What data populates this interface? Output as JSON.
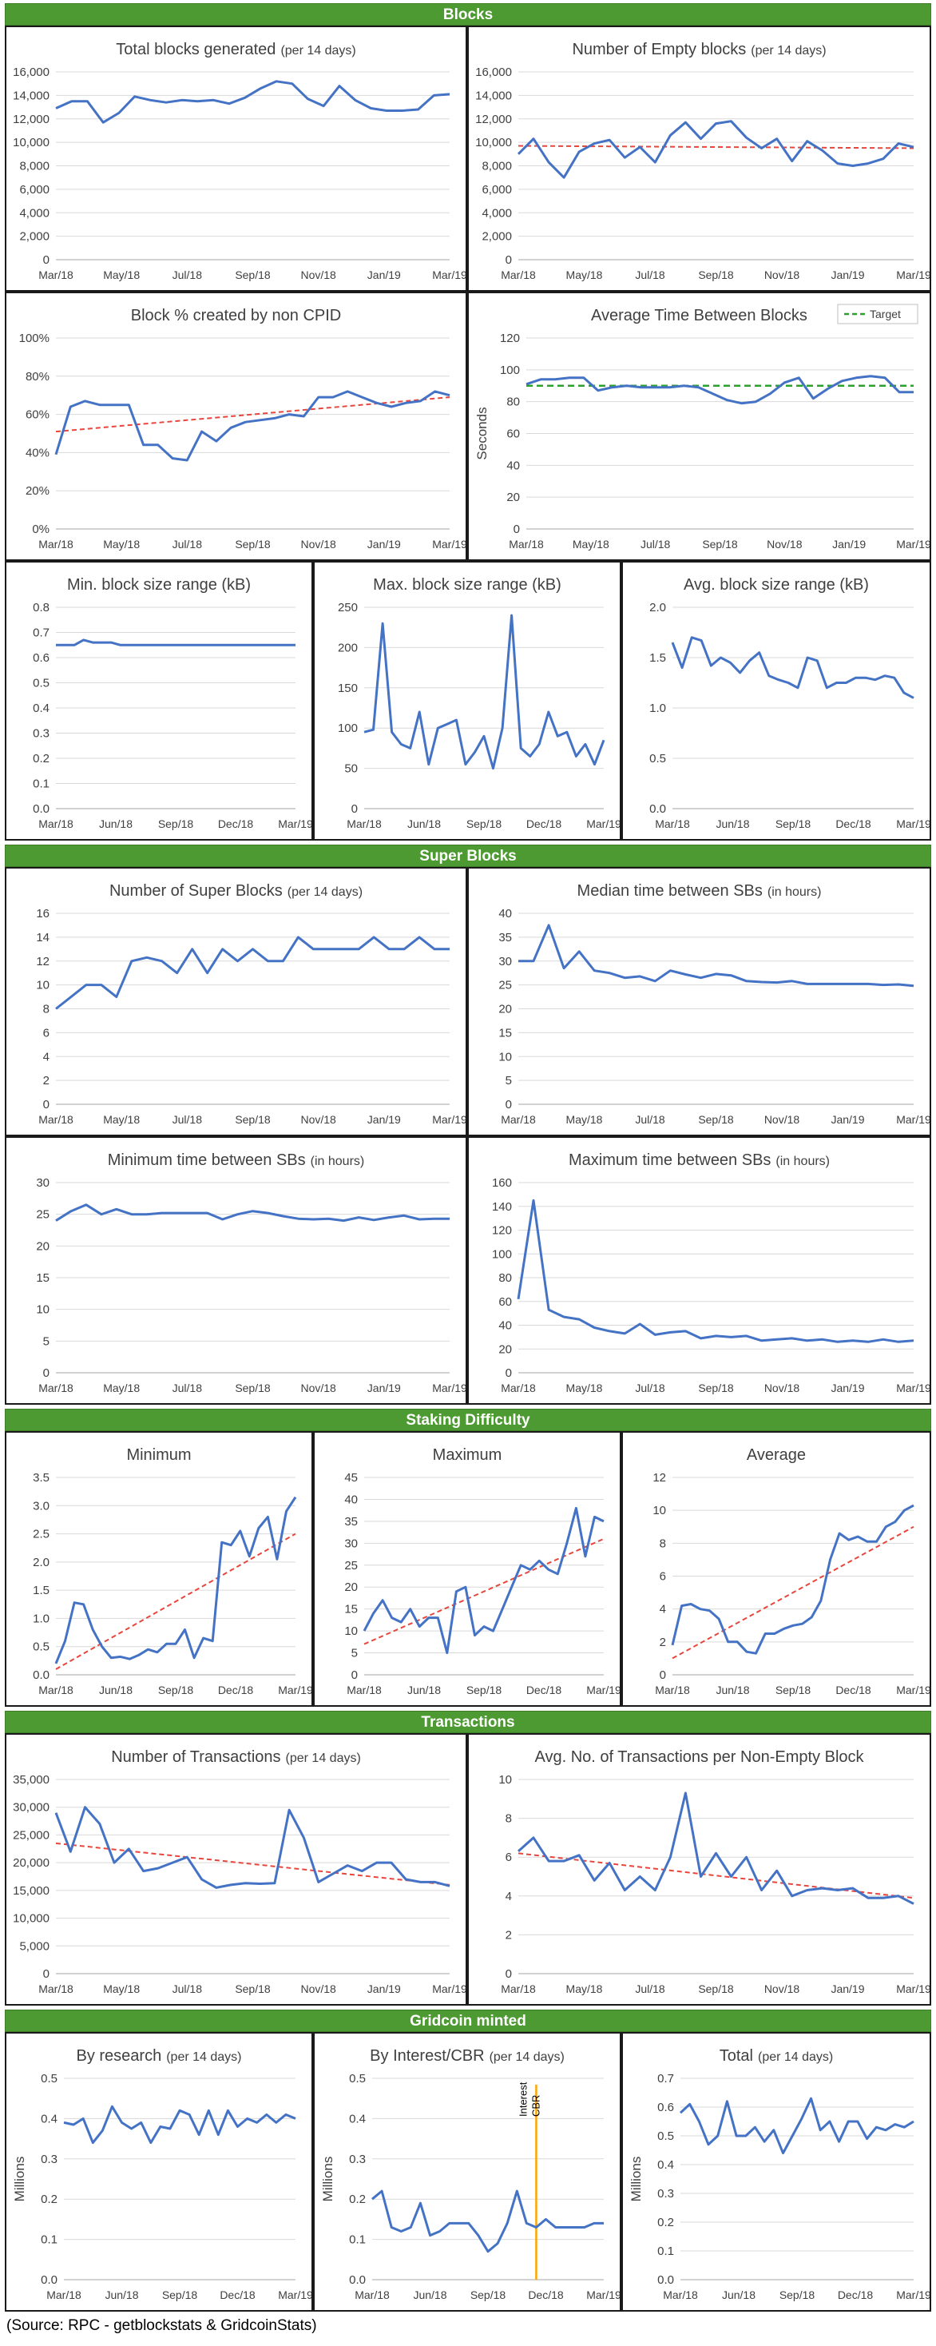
{
  "sections": [
    {
      "key": "blocks",
      "title": "Blocks"
    },
    {
      "key": "superblocks",
      "title": "Super Blocks"
    },
    {
      "key": "staking",
      "title": "Staking Difficulty"
    },
    {
      "key": "transactions",
      "title": "Transactions"
    },
    {
      "key": "minted",
      "title": "Gridcoin minted"
    }
  ],
  "source": "(Source: RPC - getblockstats & GridcoinStats)",
  "colors": {
    "series": "#4472c4",
    "trend": "#e8463c",
    "target": "#2ca02c",
    "marker": "#ffa500",
    "grid": "#d9d9d9",
    "banner": "#4e9a32"
  },
  "chart_data": [
    {
      "id": "total-blocks",
      "type": "line",
      "title": "Total blocks generated",
      "subtitle": "(per 14 days)",
      "ylim": [
        0,
        16000
      ],
      "yticks": [
        0,
        2000,
        4000,
        6000,
        8000,
        10000,
        12000,
        14000,
        16000
      ],
      "yformat": "comma",
      "xticks": [
        "Mar/18",
        "May/18",
        "Jul/18",
        "Sep/18",
        "Nov/18",
        "Jan/19",
        "Mar/19"
      ],
      "series": [
        {
          "values": [
            12900,
            13500,
            13500,
            11700,
            12500,
            13900,
            13600,
            13400,
            13600,
            13500,
            13600,
            13300,
            13800,
            14600,
            15200,
            15000,
            13700,
            13100,
            14800,
            13600,
            12900,
            12700,
            12700,
            12800,
            14000,
            14100
          ]
        }
      ]
    },
    {
      "id": "empty-blocks",
      "type": "line",
      "title": "Number of Empty blocks",
      "subtitle": "(per 14 days)",
      "ylim": [
        0,
        16000
      ],
      "yticks": [
        0,
        2000,
        4000,
        6000,
        8000,
        10000,
        12000,
        14000,
        16000
      ],
      "yformat": "comma",
      "xticks": [
        "Mar/18",
        "May/18",
        "Jul/18",
        "Sep/18",
        "Nov/18",
        "Jan/19",
        "Mar/19"
      ],
      "series": [
        {
          "values": [
            9000,
            10300,
            8300,
            7000,
            9200,
            9900,
            10200,
            8700,
            9600,
            8300,
            10600,
            11700,
            10300,
            11600,
            11800,
            10400,
            9500,
            10300,
            8400,
            10100,
            9300,
            8200,
            8000,
            8200,
            8600,
            9900,
            9600
          ]
        }
      ],
      "trend": [
        9700,
        9500
      ]
    },
    {
      "id": "non-cpid",
      "type": "line",
      "title": "Block % created by non CPID",
      "ylim": [
        0,
        100
      ],
      "yticks": [
        0,
        20,
        40,
        60,
        80,
        100
      ],
      "yformat": "percent",
      "xticks": [
        "Mar/18",
        "May/18",
        "Jul/18",
        "Sep/18",
        "Nov/18",
        "Jan/19",
        "Mar/19"
      ],
      "series": [
        {
          "values": [
            39,
            64,
            67,
            65,
            65,
            65,
            44,
            44,
            37,
            36,
            51,
            46,
            53,
            56,
            57,
            58,
            60,
            59,
            69,
            69,
            72,
            69,
            66,
            64,
            66,
            67,
            72,
            70
          ]
        }
      ],
      "trend": [
        51,
        69
      ]
    },
    {
      "id": "avg-time",
      "type": "line",
      "title": "Average Time Between Blocks",
      "ylabel": "Seconds",
      "legend": "Target",
      "target": 90,
      "ylim": [
        0,
        120
      ],
      "yticks": [
        0,
        20,
        40,
        60,
        80,
        100,
        120
      ],
      "yformat": "plain",
      "xticks": [
        "Mar/18",
        "May/18",
        "Jul/18",
        "Sep/18",
        "Nov/18",
        "Jan/19",
        "Mar/19"
      ],
      "series": [
        {
          "values": [
            91,
            94,
            94,
            95,
            95,
            87,
            89,
            90,
            89,
            89,
            89,
            90,
            89,
            85,
            81,
            79,
            80,
            85,
            92,
            95,
            82,
            88,
            93,
            95,
            96,
            95,
            86,
            86
          ]
        }
      ]
    },
    {
      "id": "min-size",
      "type": "line",
      "title": "Min. block size range (kB)",
      "ylim": [
        0,
        0.8
      ],
      "yticks": [
        0,
        0.1,
        0.2,
        0.3,
        0.4,
        0.5,
        0.6,
        0.7,
        0.8
      ],
      "yformat": "d1",
      "xticks": [
        "Mar/18",
        "Jun/18",
        "Sep/18",
        "Dec/18",
        "Mar/19"
      ],
      "series": [
        {
          "values": [
            0.65,
            0.65,
            0.65,
            0.67,
            0.66,
            0.66,
            0.66,
            0.65,
            0.65,
            0.65,
            0.65,
            0.65,
            0.65,
            0.65,
            0.65,
            0.65,
            0.65,
            0.65,
            0.65,
            0.65,
            0.65,
            0.65,
            0.65,
            0.65,
            0.65,
            0.65,
            0.65
          ]
        }
      ]
    },
    {
      "id": "max-size",
      "type": "line",
      "title": "Max. block size range (kB)",
      "ylim": [
        0,
        250
      ],
      "yticks": [
        0,
        50,
        100,
        150,
        200,
        250
      ],
      "yformat": "plain",
      "xticks": [
        "Mar/18",
        "Jun/18",
        "Sep/18",
        "Dec/18",
        "Mar/19"
      ],
      "series": [
        {
          "values": [
            95,
            98,
            230,
            95,
            80,
            75,
            120,
            55,
            100,
            105,
            110,
            55,
            70,
            90,
            50,
            100,
            240,
            75,
            65,
            80,
            120,
            90,
            95,
            65,
            80,
            55,
            85
          ]
        }
      ]
    },
    {
      "id": "avg-size",
      "type": "line",
      "title": "Avg. block size range (kB)",
      "ylim": [
        0,
        2.0
      ],
      "yticks": [
        0,
        0.5,
        1.0,
        1.5,
        2.0
      ],
      "yformat": "d1",
      "xticks": [
        "Mar/18",
        "Jun/18",
        "Sep/18",
        "Dec/18",
        "Mar/19"
      ],
      "series": [
        {
          "values": [
            1.65,
            1.4,
            1.7,
            1.67,
            1.42,
            1.5,
            1.45,
            1.35,
            1.47,
            1.55,
            1.32,
            1.28,
            1.25,
            1.2,
            1.5,
            1.47,
            1.2,
            1.25,
            1.25,
            1.3,
            1.3,
            1.28,
            1.32,
            1.3,
            1.15,
            1.1
          ]
        }
      ]
    },
    {
      "id": "num-sb",
      "type": "line",
      "title": "Number of Super Blocks",
      "subtitle": "(per 14 days)",
      "ylim": [
        0,
        16
      ],
      "yticks": [
        0,
        2,
        4,
        6,
        8,
        10,
        12,
        14,
        16
      ],
      "yformat": "plain",
      "xticks": [
        "Mar/18",
        "May/18",
        "Jul/18",
        "Sep/18",
        "Nov/18",
        "Jan/19",
        "Mar/19"
      ],
      "series": [
        {
          "values": [
            8,
            9,
            10,
            10,
            9,
            12,
            12.3,
            12,
            11,
            13,
            11,
            13,
            12,
            13,
            12,
            12,
            14,
            13,
            13,
            13,
            13,
            14,
            13,
            13,
            14,
            13,
            13
          ]
        }
      ]
    },
    {
      "id": "median-sb",
      "type": "line",
      "title": "Median time between SBs",
      "subtitle": "(in hours)",
      "ylim": [
        0,
        40
      ],
      "yticks": [
        0,
        5,
        10,
        15,
        20,
        25,
        30,
        35,
        40
      ],
      "yformat": "plain",
      "xticks": [
        "Mar/18",
        "May/18",
        "Jul/18",
        "Sep/18",
        "Nov/18",
        "Jan/19",
        "Mar/19"
      ],
      "series": [
        {
          "values": [
            30,
            30,
            37.5,
            28.5,
            32,
            28,
            27.5,
            26.5,
            26.8,
            25.8,
            28,
            27.2,
            26.5,
            27.3,
            27,
            25.8,
            25.6,
            25.5,
            25.8,
            25.2,
            25.2,
            25.2,
            25.2,
            25.2,
            25,
            25.1,
            24.8
          ]
        }
      ]
    },
    {
      "id": "min-sb",
      "type": "line",
      "title": "Minimum time between SBs",
      "subtitle": "(in hours)",
      "ylim": [
        0,
        30
      ],
      "yticks": [
        0,
        5,
        10,
        15,
        20,
        25,
        30
      ],
      "yformat": "plain",
      "xticks": [
        "Mar/18",
        "May/18",
        "Jul/18",
        "Sep/18",
        "Nov/18",
        "Jan/19",
        "Mar/19"
      ],
      "series": [
        {
          "values": [
            24,
            25.5,
            26.5,
            25,
            25.8,
            25,
            25,
            25.2,
            25.2,
            25.2,
            25.2,
            24.2,
            25,
            25.5,
            25.2,
            24.7,
            24.3,
            24.2,
            24.3,
            24,
            24.5,
            24.1,
            24.5,
            24.8,
            24.2,
            24.3,
            24.3
          ]
        }
      ]
    },
    {
      "id": "max-sb",
      "type": "line",
      "title": "Maximum time  between SBs",
      "subtitle": "(in hours)",
      "ylim": [
        0,
        160
      ],
      "yticks": [
        0,
        20,
        40,
        60,
        80,
        100,
        120,
        140,
        160
      ],
      "yformat": "plain",
      "xticks": [
        "Mar/18",
        "May/18",
        "Jul/18",
        "Sep/18",
        "Nov/18",
        "Jan/19",
        "Mar/19"
      ],
      "series": [
        {
          "values": [
            62,
            145,
            53,
            47,
            45,
            38,
            35,
            33,
            41,
            32,
            34,
            35,
            29,
            31,
            30,
            31,
            27,
            28,
            29,
            27,
            28,
            26,
            27,
            26,
            28,
            26,
            27
          ]
        }
      ]
    },
    {
      "id": "stake-min",
      "type": "line",
      "title": "Minimum",
      "ylim": [
        0,
        3.5
      ],
      "yticks": [
        0,
        0.5,
        1.0,
        1.5,
        2.0,
        2.5,
        3.0,
        3.5
      ],
      "yformat": "d1",
      "xticks": [
        "Mar/18",
        "Jun/18",
        "Sep/18",
        "Dec/18",
        "Mar/19"
      ],
      "series": [
        {
          "values": [
            0.2,
            0.6,
            1.28,
            1.25,
            0.8,
            0.5,
            0.3,
            0.32,
            0.28,
            0.35,
            0.45,
            0.4,
            0.55,
            0.55,
            0.8,
            0.3,
            0.65,
            0.6,
            2.35,
            2.3,
            2.55,
            2.1,
            2.6,
            2.8,
            2.05,
            2.9,
            3.15
          ]
        }
      ],
      "trend": [
        0.1,
        2.5
      ]
    },
    {
      "id": "stake-max",
      "type": "line",
      "title": "Maximum",
      "ylim": [
        0,
        45
      ],
      "yticks": [
        0,
        5,
        10,
        15,
        20,
        25,
        30,
        35,
        40,
        45
      ],
      "yformat": "plain",
      "xticks": [
        "Mar/18",
        "Jun/18",
        "Sep/18",
        "Dec/18",
        "Mar/19"
      ],
      "series": [
        {
          "values": [
            10,
            14,
            17,
            13,
            12,
            15,
            11,
            13,
            13,
            5,
            19,
            20,
            9,
            11,
            10,
            15,
            20,
            25,
            24,
            26,
            24,
            23,
            30,
            38,
            27,
            36,
            35
          ]
        }
      ],
      "trend": [
        7,
        31
      ]
    },
    {
      "id": "stake-avg",
      "type": "line",
      "title": "Average",
      "ylim": [
        0,
        12
      ],
      "yticks": [
        0,
        2,
        4,
        6,
        8,
        10,
        12
      ],
      "yformat": "plain",
      "xticks": [
        "Mar/18",
        "Jun/18",
        "Sep/18",
        "Dec/18",
        "Mar/19"
      ],
      "series": [
        {
          "values": [
            1.8,
            4.2,
            4.3,
            4.0,
            3.9,
            3.4,
            2.0,
            2.0,
            1.4,
            1.3,
            2.5,
            2.5,
            2.8,
            3.0,
            3.1,
            3.5,
            4.5,
            7.0,
            8.6,
            8.2,
            8.4,
            8.1,
            8.1,
            9.0,
            9.3,
            10.0,
            10.3
          ]
        }
      ],
      "trend": [
        1.0,
        9.0
      ]
    },
    {
      "id": "num-tx",
      "type": "line",
      "title": "Number of Transactions",
      "subtitle": "(per 14 days)",
      "ylim": [
        0,
        35000
      ],
      "yticks": [
        0,
        5000,
        10000,
        15000,
        20000,
        25000,
        30000,
        35000
      ],
      "yformat": "comma",
      "xticks": [
        "Mar/18",
        "May/18",
        "Jul/18",
        "Sep/18",
        "Nov/18",
        "Jan/19",
        "Mar/19"
      ],
      "series": [
        {
          "values": [
            29000,
            22000,
            30000,
            27000,
            20000,
            22500,
            18500,
            19000,
            20000,
            21000,
            17000,
            15500,
            16000,
            16300,
            16200,
            16300,
            29500,
            24500,
            16500,
            18000,
            19500,
            18500,
            20000,
            20000,
            17000,
            16500,
            16500,
            15800
          ]
        }
      ],
      "trend": [
        23500,
        16000
      ]
    },
    {
      "id": "tx-per-block",
      "type": "line",
      "title": "Avg. No. of Transactions per Non-Empty Block",
      "ylim": [
        0,
        10
      ],
      "yticks": [
        0,
        2,
        4,
        6,
        8,
        10
      ],
      "yformat": "plain",
      "xticks": [
        "Mar/18",
        "May/18",
        "Jul/18",
        "Sep/18",
        "Nov/18",
        "Jan/19",
        "Mar/19"
      ],
      "series": [
        {
          "values": [
            6.3,
            7.0,
            5.8,
            5.8,
            6.1,
            4.8,
            5.7,
            4.3,
            5.0,
            4.3,
            6.0,
            9.3,
            5.0,
            6.2,
            5.0,
            6.0,
            4.3,
            5.3,
            4.0,
            4.3,
            4.4,
            4.3,
            4.4,
            3.9,
            3.9,
            4.0,
            3.6
          ]
        }
      ],
      "trend": [
        6.2,
        3.9
      ]
    },
    {
      "id": "research",
      "type": "line",
      "title": "By research",
      "subtitle": "(per 14 days)",
      "ylabel": "Millions",
      "ylim": [
        0,
        0.5
      ],
      "yticks": [
        0,
        0.1,
        0.2,
        0.3,
        0.4,
        0.5
      ],
      "yformat": "d1",
      "xticks": [
        "Mar/18",
        "Jun/18",
        "Sep/18",
        "Dec/18",
        "Mar/19"
      ],
      "series": [
        {
          "values": [
            0.39,
            0.385,
            0.4,
            0.34,
            0.37,
            0.43,
            0.39,
            0.375,
            0.39,
            0.34,
            0.38,
            0.375,
            0.42,
            0.41,
            0.36,
            0.42,
            0.36,
            0.42,
            0.38,
            0.4,
            0.39,
            0.41,
            0.39,
            0.41,
            0.4
          ]
        }
      ]
    },
    {
      "id": "interest",
      "type": "line",
      "title": "By Interest/CBR",
      "subtitle": "(per 14 days)",
      "ylabel": "Millions",
      "marker_labels": [
        "Interest",
        "CBR"
      ],
      "marker_x": 17,
      "ylim": [
        0,
        0.5
      ],
      "yticks": [
        0,
        0.1,
        0.2,
        0.3,
        0.4,
        0.5
      ],
      "yformat": "d1",
      "xticks": [
        "Mar/18",
        "Jun/18",
        "Sep/18",
        "Dec/18",
        "Mar/19"
      ],
      "series": [
        {
          "values": [
            0.2,
            0.22,
            0.13,
            0.12,
            0.13,
            0.19,
            0.11,
            0.12,
            0.14,
            0.14,
            0.14,
            0.11,
            0.07,
            0.09,
            0.14,
            0.22,
            0.14,
            0.13,
            0.15,
            0.13,
            0.13,
            0.13,
            0.13,
            0.14,
            0.14
          ]
        }
      ]
    },
    {
      "id": "total-minted",
      "type": "line",
      "title": "Total",
      "subtitle": "(per 14 days)",
      "ylabel": "Millions",
      "ylim": [
        0,
        0.7
      ],
      "yticks": [
        0,
        0.1,
        0.2,
        0.3,
        0.4,
        0.5,
        0.6,
        0.7
      ],
      "yformat": "d1",
      "xticks": [
        "Mar/18",
        "Jun/18",
        "Sep/18",
        "Dec/18",
        "Mar/19"
      ],
      "series": [
        {
          "values": [
            0.58,
            0.61,
            0.55,
            0.47,
            0.5,
            0.62,
            0.5,
            0.5,
            0.53,
            0.48,
            0.52,
            0.44,
            0.5,
            0.56,
            0.63,
            0.52,
            0.55,
            0.48,
            0.55,
            0.55,
            0.49,
            0.53,
            0.52,
            0.54,
            0.53,
            0.55
          ]
        }
      ]
    }
  ]
}
